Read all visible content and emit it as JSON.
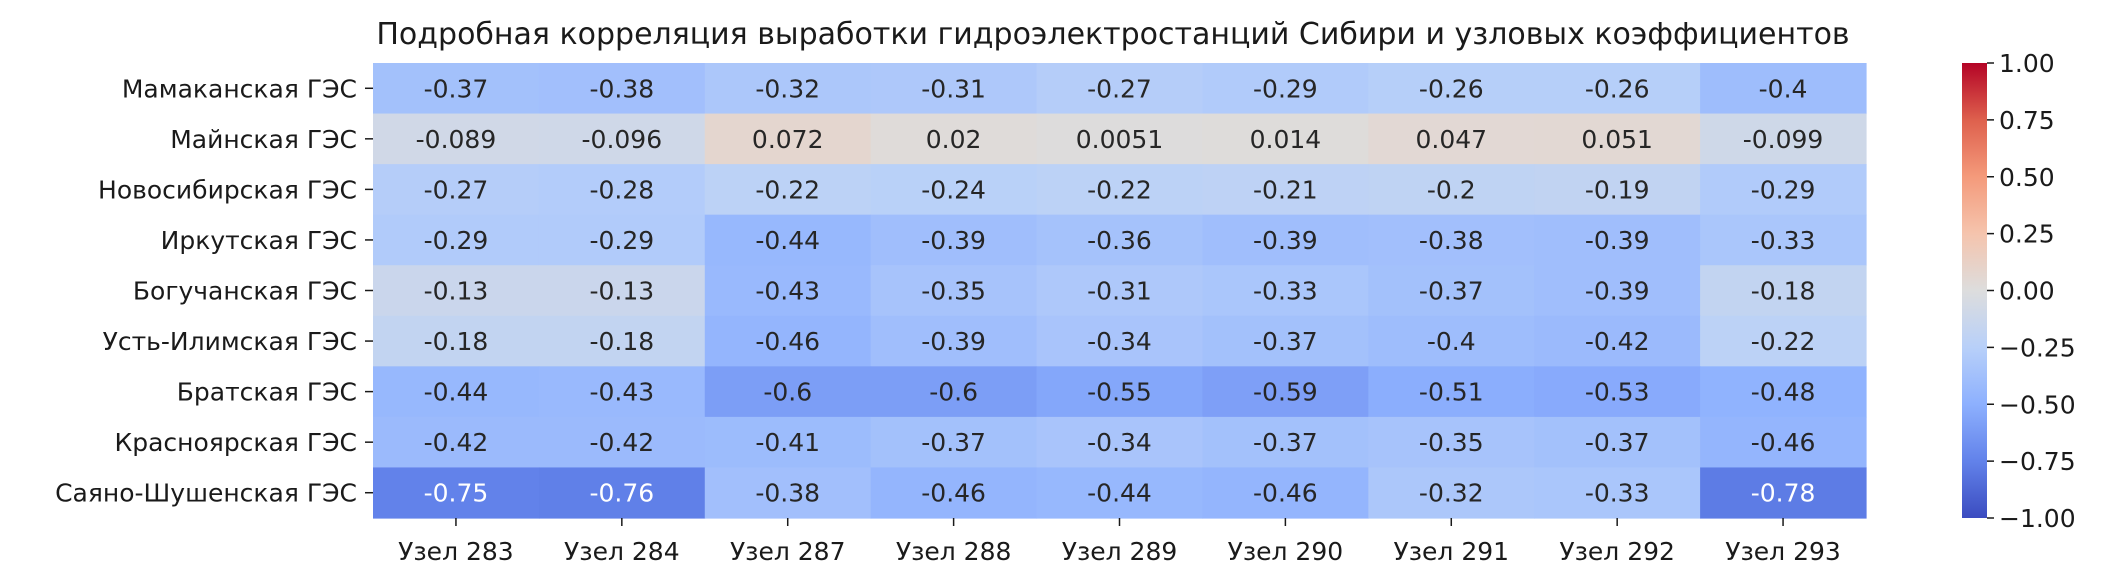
{
  "chart_data": {
    "type": "heatmap",
    "title": "Подробная корреляция выработки гидроэлектростанций Сибири и узловых коэффициентов",
    "rows": [
      "Мамаканская ГЭС",
      "Майнская ГЭС",
      "Новосибирская ГЭС",
      "Иркутская ГЭС",
      "Богучанская ГЭС",
      "Усть-Илимская ГЭС",
      "Братская ГЭС",
      "Красноярская ГЭС",
      "Саяно-Шушенская ГЭС"
    ],
    "columns": [
      "Узел 283",
      "Узел 284",
      "Узел 287",
      "Узел 288",
      "Узел 289",
      "Узел 290",
      "Узел 291",
      "Узел 292",
      "Узел 293"
    ],
    "values": [
      [
        -0.37,
        -0.38,
        -0.32,
        -0.31,
        -0.27,
        -0.29,
        -0.26,
        -0.26,
        -0.4
      ],
      [
        -0.089,
        -0.096,
        0.072,
        0.02,
        0.0051,
        0.014,
        0.047,
        0.051,
        -0.099
      ],
      [
        -0.27,
        -0.28,
        -0.22,
        -0.24,
        -0.22,
        -0.21,
        -0.2,
        -0.19,
        -0.29
      ],
      [
        -0.29,
        -0.29,
        -0.44,
        -0.39,
        -0.36,
        -0.39,
        -0.38,
        -0.39,
        -0.33
      ],
      [
        -0.13,
        -0.13,
        -0.43,
        -0.35,
        -0.31,
        -0.33,
        -0.37,
        -0.39,
        -0.18
      ],
      [
        -0.18,
        -0.18,
        -0.46,
        -0.39,
        -0.34,
        -0.37,
        -0.4,
        -0.42,
        -0.22
      ],
      [
        -0.44,
        -0.43,
        -0.6,
        -0.6,
        -0.55,
        -0.59,
        -0.51,
        -0.53,
        -0.48
      ],
      [
        -0.42,
        -0.42,
        -0.41,
        -0.37,
        -0.34,
        -0.37,
        -0.35,
        -0.37,
        -0.46
      ],
      [
        -0.75,
        -0.76,
        -0.38,
        -0.46,
        -0.44,
        -0.46,
        -0.32,
        -0.33,
        -0.78
      ]
    ],
    "value_labels": [
      [
        "-0.37",
        "-0.38",
        "-0.32",
        "-0.31",
        "-0.27",
        "-0.29",
        "-0.26",
        "-0.26",
        "-0.4"
      ],
      [
        "-0.089",
        "-0.096",
        "0.072",
        "0.02",
        "0.0051",
        "0.014",
        "0.047",
        "0.051",
        "-0.099"
      ],
      [
        "-0.27",
        "-0.28",
        "-0.22",
        "-0.24",
        "-0.22",
        "-0.21",
        "-0.2",
        "-0.19",
        "-0.29"
      ],
      [
        "-0.29",
        "-0.29",
        "-0.44",
        "-0.39",
        "-0.36",
        "-0.39",
        "-0.38",
        "-0.39",
        "-0.33"
      ],
      [
        "-0.13",
        "-0.13",
        "-0.43",
        "-0.35",
        "-0.31",
        "-0.33",
        "-0.37",
        "-0.39",
        "-0.18"
      ],
      [
        "-0.18",
        "-0.18",
        "-0.46",
        "-0.39",
        "-0.34",
        "-0.37",
        "-0.4",
        "-0.42",
        "-0.22"
      ],
      [
        "-0.44",
        "-0.43",
        "-0.6",
        "-0.6",
        "-0.55",
        "-0.59",
        "-0.51",
        "-0.53",
        "-0.48"
      ],
      [
        "-0.42",
        "-0.42",
        "-0.41",
        "-0.37",
        "-0.34",
        "-0.37",
        "-0.35",
        "-0.37",
        "-0.46"
      ],
      [
        "-0.75",
        "-0.76",
        "-0.38",
        "-0.46",
        "-0.44",
        "-0.46",
        "-0.32",
        "-0.33",
        "-0.78"
      ]
    ],
    "colormap": "coolwarm",
    "vmin": -1,
    "vmax": 1,
    "colorbar": {
      "ticks": [
        1.0,
        0.75,
        0.5,
        0.25,
        0.0,
        -0.25,
        -0.5,
        -0.75,
        -1.0
      ],
      "tick_labels": [
        "1.00",
        "0.75",
        "0.50",
        "0.25",
        "0.00",
        "−0.25",
        "−0.50",
        "−0.75",
        "−1.00"
      ],
      "placement": "right"
    },
    "grid": false
  }
}
